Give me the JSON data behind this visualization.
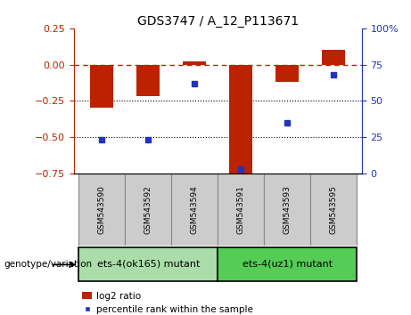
{
  "title": "GDS3747 / A_12_P113671",
  "samples": [
    "GSM543590",
    "GSM543592",
    "GSM543594",
    "GSM543591",
    "GSM543593",
    "GSM543595"
  ],
  "log2_ratio": [
    -0.3,
    -0.22,
    0.02,
    -0.75,
    -0.12,
    0.1
  ],
  "percentile_rank": [
    23,
    23,
    62,
    3,
    35,
    68
  ],
  "ylim_left": [
    -0.75,
    0.25
  ],
  "ylim_right": [
    0,
    100
  ],
  "yticks_left": [
    -0.75,
    -0.5,
    -0.25,
    0,
    0.25
  ],
  "yticks_right": [
    0,
    25,
    50,
    75,
    100
  ],
  "bar_color": "#bb2200",
  "dot_color": "#2233bb",
  "dotted_lines": [
    -0.25,
    -0.5
  ],
  "groups": [
    {
      "label": "ets-4(ok165) mutant",
      "n_samples": 3,
      "color": "#aaddaa"
    },
    {
      "label": "ets-4(uz1) mutant",
      "n_samples": 3,
      "color": "#55cc55"
    }
  ],
  "genotype_label": "genotype/variation",
  "legend_log2": "log2 ratio",
  "legend_pct": "percentile rank within the sample",
  "bar_width": 0.5,
  "label_bg": "#cccccc"
}
